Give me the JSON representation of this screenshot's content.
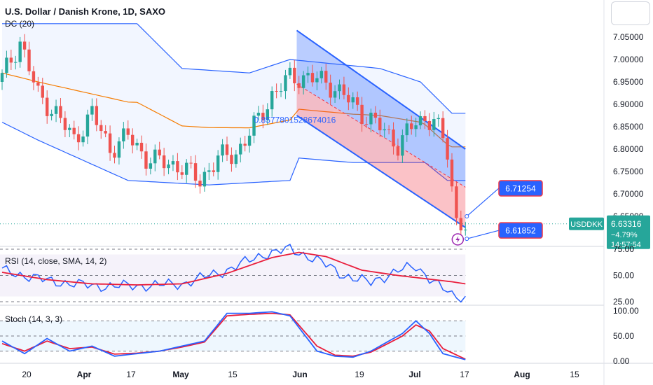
{
  "header": {
    "title": "U.S. Dollar / Danish Krone, 1D, SAXO",
    "indicator": "DC (20)"
  },
  "price_axis": {
    "labels": [
      "7.05000",
      "7.00000",
      "6.95000",
      "6.90000",
      "6.85000",
      "6.80000",
      "6.75000",
      "6.70000",
      "6.65000"
    ],
    "values": [
      7.05,
      7.0,
      6.95,
      6.9,
      6.85,
      6.8,
      6.75,
      6.7,
      6.65
    ]
  },
  "last_price": {
    "symbol": "USDDKK",
    "price": "6.63316",
    "change": "−4.79%",
    "countdown": "14:57:54",
    "value": 6.63316,
    "color": "#26a69a"
  },
  "annotations": {
    "upper_callout": "6.71254",
    "lower_callout": "6.61852",
    "channel_label": "0.8577801528674016",
    "upper_value": 6.71254,
    "lower_value": 6.61852,
    "lightning_icon": "lightning-icon"
  },
  "rsi": {
    "label": "RSI (14, close, SMA, 14, 2)",
    "axis_labels": [
      "75.00",
      "50.00",
      "25.00"
    ],
    "axis_values": [
      75,
      50,
      25
    ]
  },
  "stoch": {
    "label": "Stoch (14, 3, 3)",
    "axis_labels": [
      "100.00",
      "50.00",
      "0.00"
    ],
    "axis_values": [
      100,
      50,
      0
    ]
  },
  "time_axis": {
    "labels": [
      "20",
      "Apr",
      "17",
      "May",
      "15",
      "Jun",
      "19",
      "Jul",
      "17",
      "Aug",
      "15"
    ],
    "bold": [
      false,
      true,
      false,
      true,
      false,
      true,
      false,
      true,
      false,
      true,
      false
    ]
  },
  "colors": {
    "up": "#26a69a",
    "down": "#ef5350",
    "channel_band": "#2962ff",
    "middle_line": "#f57c00",
    "rsi_line": "#2962ff",
    "rsi_ma": "#e91e3c",
    "stoch_k": "#2962ff",
    "stoch_d": "#e91e3c"
  },
  "chart_data": [
    {
      "type": "candlestick",
      "title": "U.S. Dollar / Danish Krone, 1D, SAXO",
      "ylim": [
        6.6,
        7.09
      ],
      "x_ticks": [
        "20",
        "Apr",
        "17",
        "May",
        "15",
        "Jun",
        "19",
        "Jul",
        "17",
        "Aug",
        "15"
      ],
      "y_ticks": [
        7.05,
        7.0,
        6.95,
        6.9,
        6.85,
        6.8,
        6.75,
        6.7,
        6.65
      ],
      "series": [
        {
          "name": "USDDKK",
          "close_points": [
            [
              0,
              6.96
            ],
            [
              4,
              7.04
            ],
            [
              8,
              6.92
            ],
            [
              12,
              6.88
            ],
            [
              16,
              6.82
            ],
            [
              20,
              6.88
            ],
            [
              24,
              6.8
            ],
            [
              28,
              6.83
            ],
            [
              32,
              6.78
            ],
            [
              36,
              6.77
            ],
            [
              40,
              6.76
            ],
            [
              44,
              6.73
            ],
            [
              48,
              6.78
            ],
            [
              52,
              6.79
            ],
            [
              56,
              6.85
            ],
            [
              60,
              6.92
            ],
            [
              64,
              6.96
            ],
            [
              68,
              6.96
            ],
            [
              72,
              6.95
            ],
            [
              76,
              6.92
            ],
            [
              80,
              6.88
            ],
            [
              84,
              6.85
            ],
            [
              88,
              6.81
            ],
            [
              92,
              6.86
            ],
            [
              96,
              6.87
            ],
            [
              99,
              6.79
            ],
            [
              101,
              6.64
            ],
            [
              103,
              6.63316
            ]
          ]
        },
        {
          "name": "DC (20)",
          "upper_points": [
            [
              0,
              7.08
            ],
            [
              30,
              7.08
            ],
            [
              40,
              6.98
            ],
            [
              55,
              6.97
            ],
            [
              64,
              7.0
            ],
            [
              84,
              6.98
            ],
            [
              93,
              6.95
            ],
            [
              100,
              6.88
            ],
            [
              103,
              6.88
            ]
          ],
          "lower_points": [
            [
              0,
              6.86
            ],
            [
              8,
              6.82
            ],
            [
              28,
              6.73
            ],
            [
              46,
              6.72
            ],
            [
              64,
              6.73
            ],
            [
              66,
              6.78
            ],
            [
              78,
              6.77
            ],
            [
              94,
              6.77
            ],
            [
              99,
              6.73
            ],
            [
              103,
              6.73
            ]
          ]
        }
      ],
      "annotations": [
        "6.71254",
        "6.61852",
        "0.8577801528674016",
        "USDDKK 6.63316 −4.79% 14:57:54"
      ]
    },
    {
      "type": "line",
      "title": "RSI (14, close, SMA, 14, 2)",
      "ylim": [
        15,
        80
      ],
      "y_ticks": [
        75,
        50,
        25
      ],
      "series": [
        {
          "name": "RSI",
          "points": [
            [
              0,
              55
            ],
            [
              10,
              45
            ],
            [
              20,
              40
            ],
            [
              30,
              40
            ],
            [
              40,
              42
            ],
            [
              50,
              55
            ],
            [
              58,
              70
            ],
            [
              64,
              75
            ],
            [
              70,
              65
            ],
            [
              76,
              50
            ],
            [
              82,
              43
            ],
            [
              88,
              55
            ],
            [
              92,
              58
            ],
            [
              96,
              45
            ],
            [
              100,
              30
            ],
            [
              103,
              29
            ]
          ]
        },
        {
          "name": "SMA",
          "points": [
            [
              0,
              53
            ],
            [
              10,
              46
            ],
            [
              20,
              42
            ],
            [
              30,
              41
            ],
            [
              40,
              42
            ],
            [
              50,
              52
            ],
            [
              60,
              67
            ],
            [
              66,
              72
            ],
            [
              72,
              68
            ],
            [
              80,
              55
            ],
            [
              88,
              50
            ],
            [
              96,
              46
            ],
            [
              100,
              44
            ],
            [
              103,
              42
            ]
          ]
        }
      ]
    },
    {
      "type": "line",
      "title": "Stoch (14, 3, 3)",
      "ylim": [
        -5,
        105
      ],
      "y_ticks": [
        100,
        50,
        0
      ],
      "series": [
        {
          "name": "%K",
          "points": [
            [
              0,
              40
            ],
            [
              5,
              15
            ],
            [
              10,
              45
            ],
            [
              15,
              20
            ],
            [
              20,
              30
            ],
            [
              25,
              10
            ],
            [
              30,
              15
            ],
            [
              35,
              20
            ],
            [
              40,
              30
            ],
            [
              45,
              40
            ],
            [
              50,
              95
            ],
            [
              55,
              95
            ],
            [
              60,
              98
            ],
            [
              64,
              90
            ],
            [
              70,
              20
            ],
            [
              74,
              10
            ],
            [
              78,
              8
            ],
            [
              82,
              20
            ],
            [
              86,
              40
            ],
            [
              89,
              55
            ],
            [
              92,
              80
            ],
            [
              95,
              55
            ],
            [
              98,
              15
            ],
            [
              103,
              3
            ]
          ]
        },
        {
          "name": "%D",
          "points": [
            [
              0,
              35
            ],
            [
              5,
              20
            ],
            [
              10,
              40
            ],
            [
              15,
              25
            ],
            [
              20,
              28
            ],
            [
              25,
              14
            ],
            [
              30,
              16
            ],
            [
              35,
              20
            ],
            [
              40,
              28
            ],
            [
              45,
              38
            ],
            [
              50,
              90
            ],
            [
              55,
              93
            ],
            [
              60,
              95
            ],
            [
              64,
              92
            ],
            [
              70,
              30
            ],
            [
              74,
              12
            ],
            [
              78,
              10
            ],
            [
              82,
              18
            ],
            [
              86,
              36
            ],
            [
              89,
              50
            ],
            [
              92,
              72
            ],
            [
              95,
              60
            ],
            [
              98,
              25
            ],
            [
              103,
              4
            ]
          ]
        }
      ]
    }
  ]
}
